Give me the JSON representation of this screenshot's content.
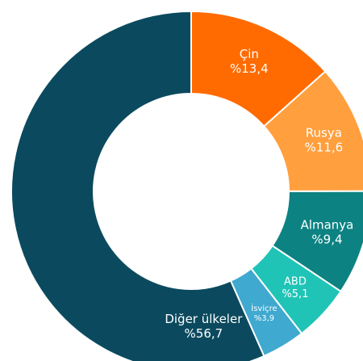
{
  "chart_data": {
    "type": "donut",
    "categories": [
      "Diğer ülkeler",
      "İsviçre",
      "ABD",
      "Almanya",
      "Rusya",
      "Çin"
    ],
    "values": [
      56.7,
      3.9,
      5.1,
      9.4,
      11.6,
      13.4
    ],
    "value_labels": [
      "%56,7",
      "%3,9",
      "%5,1",
      "%9,4",
      "%11,6",
      "%13,4"
    ],
    "colors": [
      "#0b4a5e",
      "#3fa9d0",
      "#1fc4b6",
      "#0d8282",
      "#ff9f3d",
      "#ff6b00"
    ]
  }
}
